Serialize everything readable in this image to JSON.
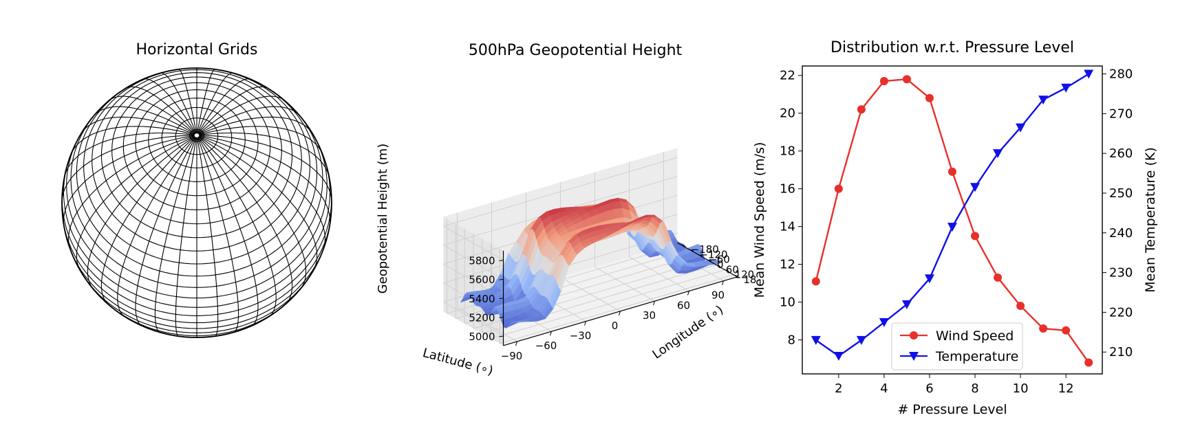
{
  "panels": {
    "globe": {
      "title": "Horizontal Grids"
    },
    "surface": {
      "title": "500hPa Geopotential Height",
      "zlabel": "Geopotential Height (m)",
      "xlabel": "Latitude (∘)",
      "ylabel": "Longitude (∘)",
      "zticks": [
        "5000",
        "5200",
        "5400",
        "5600",
        "5800"
      ],
      "xticks": [
        "−90",
        "−60",
        "−30",
        "0",
        "30",
        "60",
        "90"
      ],
      "yticks": [
        "180",
        "120",
        "60",
        "0",
        "−60",
        "−120",
        "−180"
      ],
      "colormap": [
        "#3b4cc0",
        "#dddddd",
        "#b40426"
      ]
    }
  },
  "chart_data": [
    {
      "type": "line",
      "title": "Distribution w.r.t. Pressure Level",
      "xlabel": "# Pressure Level",
      "ylabel": "Mean Wind Speed (m/s)",
      "ylabel_right": "Mean Temperature (K)",
      "x": [
        1,
        2,
        3,
        4,
        5,
        6,
        7,
        8,
        9,
        10,
        11,
        12,
        13
      ],
      "xlim": [
        0.4,
        13.6
      ],
      "ylim": [
        6.2,
        22.5
      ],
      "ylim_right": [
        204.5,
        282
      ],
      "xticks": [
        2,
        4,
        6,
        8,
        10,
        12
      ],
      "yticks": [
        8,
        10,
        12,
        14,
        16,
        18,
        20,
        22
      ],
      "yticks_right": [
        210,
        220,
        230,
        240,
        250,
        260,
        270,
        280
      ],
      "legend_position": "lower-center",
      "grid": false,
      "series": [
        {
          "name": "Wind Speed",
          "axis": "left",
          "color": "#e8302a",
          "marker": "circle",
          "values": [
            11.1,
            16.0,
            20.2,
            21.7,
            21.8,
            20.8,
            16.9,
            13.5,
            11.3,
            9.8,
            8.6,
            8.5,
            6.8
          ]
        },
        {
          "name": "Temperature",
          "axis": "right",
          "color": "#1010e8",
          "marker": "triangle-down",
          "values": [
            213,
            209,
            213,
            217.5,
            222,
            228.5,
            241.5,
            251.5,
            260,
            266.5,
            273.5,
            276.5,
            280
          ]
        }
      ]
    },
    {
      "type": "surface3d",
      "title": "500hPa Geopotential Height",
      "x": [
        -90,
        -60,
        -30,
        0,
        30,
        60,
        90
      ],
      "y": [
        -180,
        -120,
        -60,
        0,
        60,
        120,
        180
      ],
      "zlim": [
        4900,
        5900
      ]
    }
  ]
}
